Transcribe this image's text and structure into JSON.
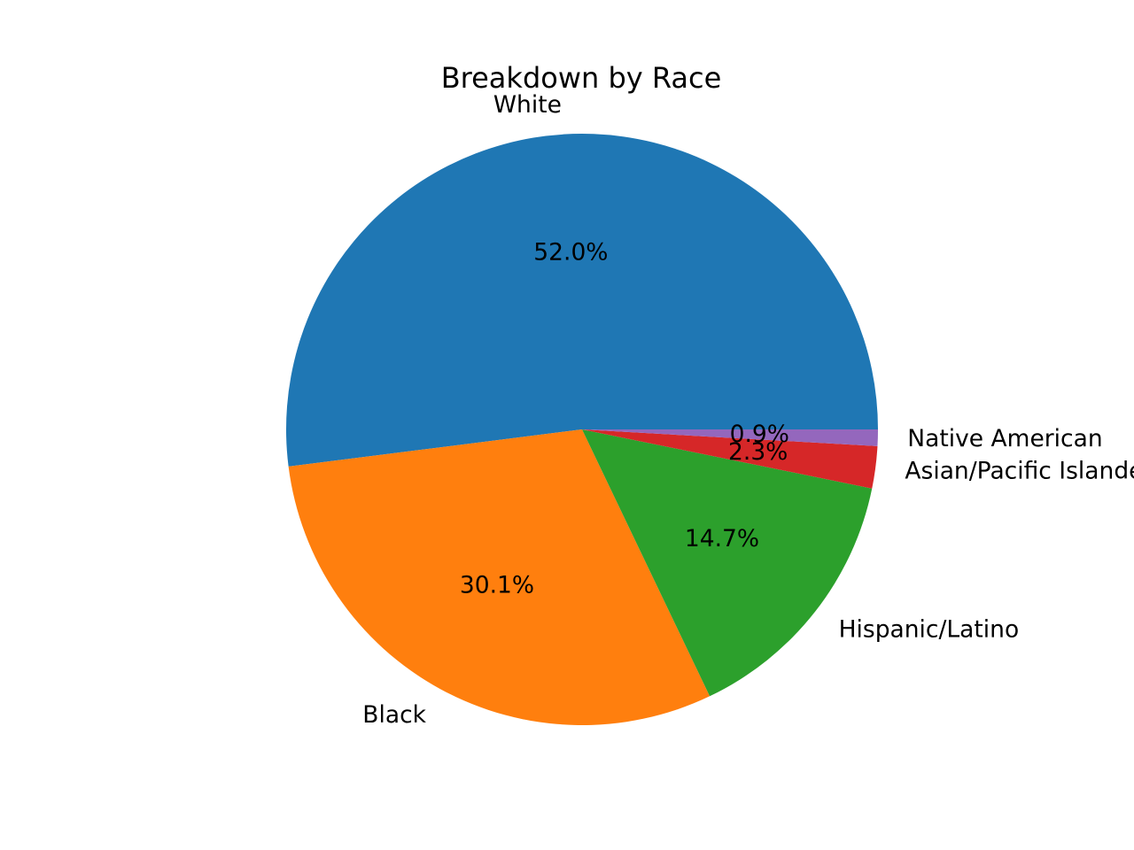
{
  "chart_data": {
    "type": "pie",
    "title": "Breakdown by Race",
    "categories": [
      "White",
      "Black",
      "Hispanic/Latino",
      "Asian/Pacific Islander",
      "Native American"
    ],
    "values": [
      52.0,
      30.1,
      14.7,
      2.3,
      0.9
    ],
    "percent_labels": [
      "52.0%",
      "30.1%",
      "14.7%",
      "2.3%",
      "0.9%"
    ],
    "colors": [
      "#1f77b4",
      "#ff7f0e",
      "#2ca02c",
      "#d62728",
      "#9467bd"
    ],
    "start_angle_deg": 0,
    "direction": "counterclockwise",
    "legend": "none"
  }
}
